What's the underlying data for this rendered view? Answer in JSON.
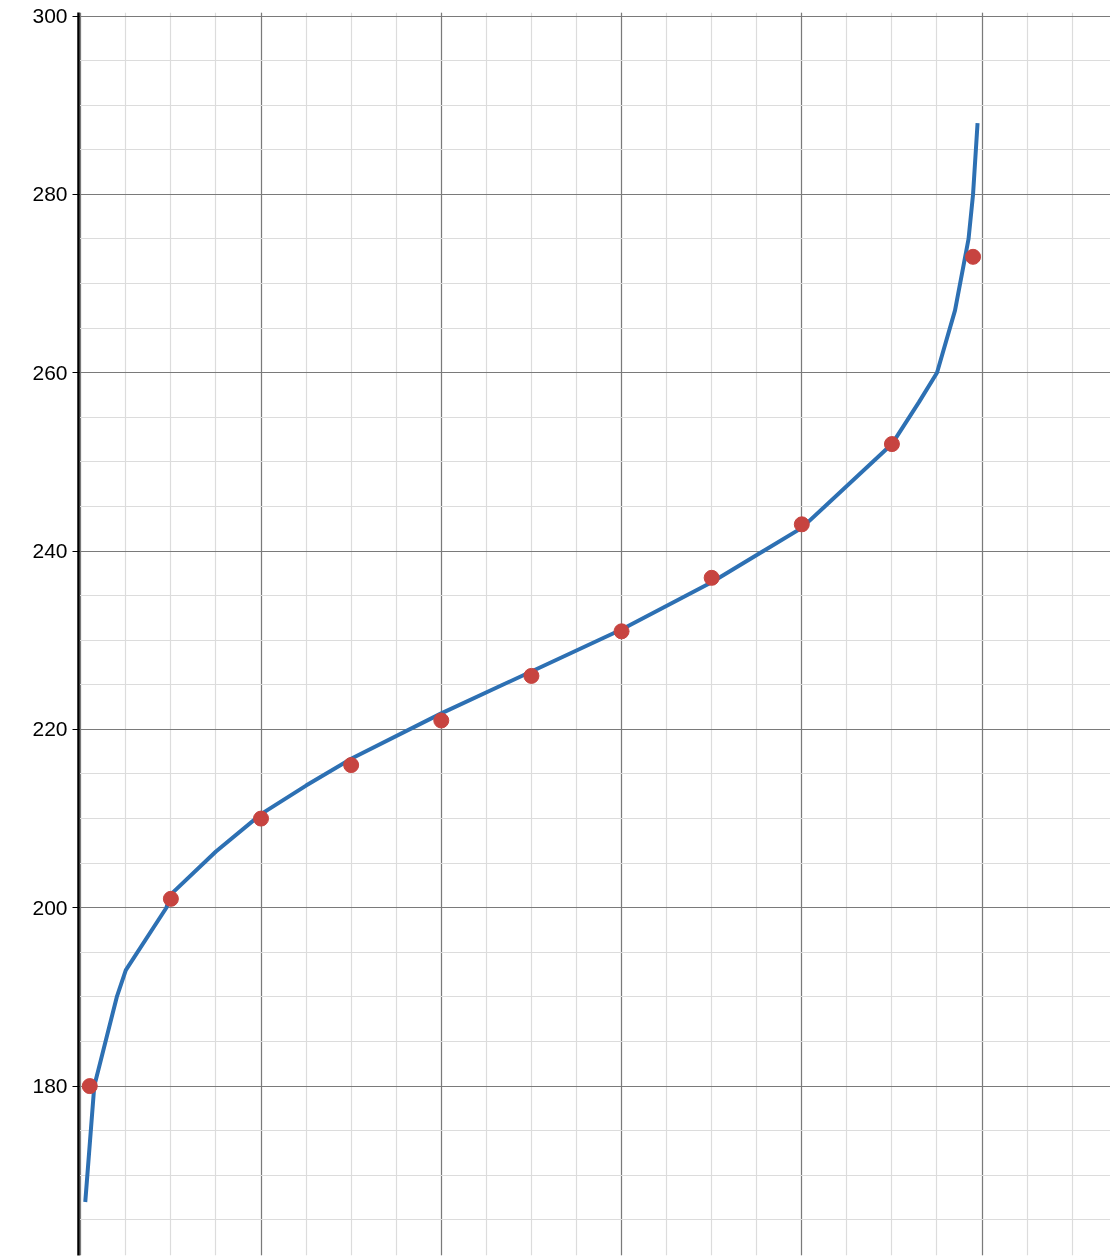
{
  "chart_data": {
    "type": "line",
    "categories": [
      null,
      null,
      null,
      null,
      null,
      null,
      null,
      null,
      null,
      null,
      null,
      null,
      null,
      null,
      null,
      null,
      null,
      null,
      null,
      null,
      null,
      null,
      null,
      null,
      null,
      null,
      null,
      null,
      null,
      null,
      null,
      null,
      null,
      null,
      null,
      null,
      null,
      null,
      null,
      null,
      null,
      null,
      null,
      null,
      null,
      null,
      null,
      null,
      null,
      null,
      null,
      null,
      null,
      null,
      null,
      null,
      null,
      null,
      null,
      null,
      null,
      null,
      null,
      null,
      null,
      null,
      null,
      null,
      null,
      null,
      null,
      null,
      null,
      null,
      null,
      null,
      null,
      null,
      null,
      null,
      null,
      null,
      null,
      null,
      null,
      null,
      null,
      null,
      null,
      null,
      null,
      null,
      null,
      null,
      null,
      null,
      null,
      null,
      null,
      null,
      null,
      null,
      null,
      null,
      null,
      null,
      null,
      null,
      null,
      null,
      null,
      null,
      null,
      null,
      null,
      null,
      null,
      null,
      null,
      null,
      null,
      null,
      null,
      null,
      null,
      null,
      null,
      null,
      null,
      null,
      null,
      null,
      null,
      null,
      null,
      null,
      null,
      null,
      null,
      null,
      null,
      null,
      null,
      null,
      null,
      null,
      null,
      null,
      null,
      null,
      null,
      null,
      null,
      null,
      null,
      null,
      null,
      null,
      null,
      null,
      null,
      null,
      null,
      null,
      null,
      null,
      null,
      null,
      null,
      null,
      null,
      null,
      null,
      null,
      null,
      null,
      null,
      null,
      null,
      null,
      null,
      null,
      null,
      null,
      null,
      null,
      null,
      null,
      null,
      null,
      null,
      null,
      null,
      null,
      null,
      null,
      null,
      null,
      null,
      null,
      null,
      null,
      null,
      null,
      null,
      null,
      null,
      null,
      null,
      null,
      null,
      null,
      null,
      null,
      null,
      null,
      null,
      null,
      null,
      null,
      null,
      null,
      null,
      null,
      null,
      null,
      null,
      null,
      null
    ],
    "ylim": [
      161,
      300.4
    ],
    "yticks": [
      180,
      200,
      220,
      240,
      260,
      280,
      300
    ],
    "grid": true,
    "series": [
      {
        "color": "#2d70b3",
        "line_style": "solid",
        "values": [
          null,
          167,
          null,
          180,
          182,
          null,
          null,
          null,
          190,
          null,
          193,
          null,
          null,
          null,
          null,
          null,
          null,
          null,
          null,
          200,
          201.5,
          null,
          null,
          null,
          null,
          null,
          null,
          null,
          null,
          null,
          206.3,
          null,
          null,
          null,
          null,
          null,
          null,
          null,
          null,
          null,
          210.5,
          null,
          null,
          null,
          null,
          null,
          null,
          null,
          null,
          null,
          213.7,
          null,
          null,
          null,
          null,
          null,
          null,
          null,
          null,
          null,
          216.7,
          null,
          null,
          null,
          null,
          null,
          null,
          null,
          null,
          null,
          null,
          null,
          null,
          null,
          null,
          null,
          null,
          null,
          null,
          null,
          221.8,
          null,
          null,
          null,
          null,
          null,
          null,
          null,
          null,
          null,
          null,
          null,
          null,
          null,
          null,
          null,
          null,
          null,
          null,
          null,
          226.5,
          null,
          null,
          null,
          null,
          null,
          null,
          null,
          null,
          null,
          null,
          null,
          null,
          null,
          null,
          null,
          null,
          null,
          null,
          null,
          231.2,
          null,
          null,
          null,
          null,
          null,
          null,
          null,
          null,
          null,
          null,
          null,
          null,
          null,
          null,
          null,
          null,
          null,
          null,
          null,
          236.5,
          null,
          null,
          null,
          null,
          null,
          null,
          null,
          null,
          null,
          null,
          null,
          null,
          null,
          null,
          null,
          null,
          null,
          null,
          null,
          242.6,
          null,
          null,
          null,
          null,
          null,
          null,
          null,
          null,
          null,
          null,
          null,
          null,
          null,
          null,
          null,
          null,
          null,
          null,
          null,
          252,
          null,
          null,
          null,
          null,
          null,
          256.7,
          null,
          null,
          null,
          260,
          null,
          null,
          null,
          267,
          null,
          null,
          275,
          280,
          288,
          null,
          null,
          null,
          null,
          null,
          null,
          null,
          null,
          null,
          null,
          null,
          null,
          null,
          null,
          null,
          null,
          null,
          null,
          null,
          null,
          null,
          null,
          null,
          null,
          null,
          null,
          null,
          null,
          null
        ]
      },
      {
        "type": "scatter",
        "color": "#c74440",
        "marker": "circle",
        "values": [
          null,
          null,
          180,
          null,
          null,
          null,
          null,
          null,
          null,
          null,
          null,
          null,
          null,
          null,
          null,
          null,
          null,
          null,
          null,
          null,
          201,
          null,
          null,
          null,
          null,
          null,
          null,
          null,
          null,
          null,
          null,
          null,
          null,
          null,
          null,
          null,
          null,
          null,
          null,
          null,
          210,
          null,
          null,
          null,
          null,
          null,
          null,
          null,
          null,
          null,
          null,
          null,
          null,
          null,
          null,
          null,
          null,
          null,
          null,
          null,
          216,
          null,
          null,
          null,
          null,
          null,
          null,
          null,
          null,
          null,
          null,
          null,
          null,
          null,
          null,
          null,
          null,
          null,
          null,
          null,
          221,
          null,
          null,
          null,
          null,
          null,
          null,
          null,
          null,
          null,
          null,
          null,
          null,
          null,
          null,
          null,
          null,
          null,
          null,
          null,
          226,
          null,
          null,
          null,
          null,
          null,
          null,
          null,
          null,
          null,
          null,
          null,
          null,
          null,
          null,
          null,
          null,
          null,
          null,
          null,
          231,
          null,
          null,
          null,
          null,
          null,
          null,
          null,
          null,
          null,
          null,
          null,
          null,
          null,
          null,
          null,
          null,
          null,
          null,
          null,
          237,
          null,
          null,
          null,
          null,
          null,
          null,
          null,
          null,
          null,
          null,
          null,
          null,
          null,
          null,
          null,
          null,
          null,
          null,
          null,
          243,
          null,
          null,
          null,
          null,
          null,
          null,
          null,
          null,
          null,
          null,
          null,
          null,
          null,
          null,
          null,
          null,
          null,
          null,
          null,
          252,
          null,
          null,
          null,
          null,
          null,
          null,
          null,
          null,
          null,
          null,
          null,
          null,
          null,
          null,
          null,
          null,
          null,
          273,
          null,
          null,
          null,
          null,
          null,
          null,
          null,
          null,
          null,
          null,
          null,
          null,
          null,
          null,
          null,
          null,
          null,
          null,
          null,
          null,
          null,
          null,
          null,
          null,
          null,
          null,
          null,
          null,
          null,
          null
        ]
      }
    ]
  }
}
